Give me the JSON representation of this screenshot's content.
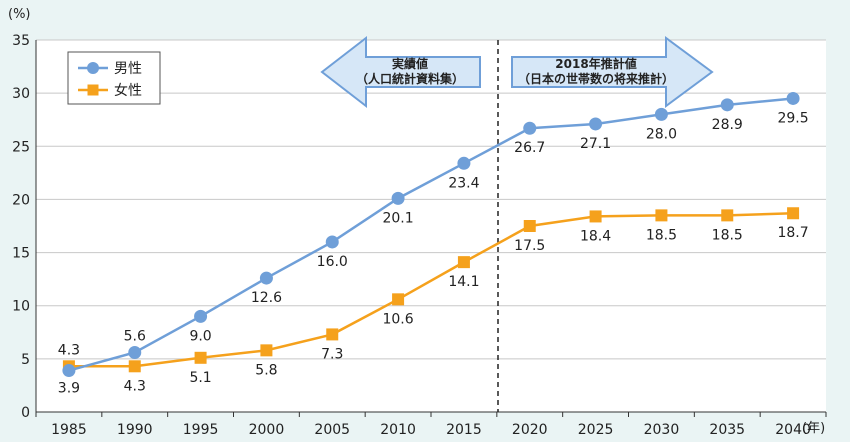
{
  "chart_data": {
    "type": "line",
    "ylabel": "(%)",
    "xunit": "(年)",
    "ylim": [
      0,
      35
    ],
    "yticks": [
      0,
      5,
      10,
      15,
      20,
      25,
      30,
      35
    ],
    "x": [
      "1985",
      "1990",
      "1995",
      "2000",
      "2005",
      "2010",
      "2015",
      "2020",
      "2025",
      "2030",
      "2035",
      "2040"
    ],
    "legend_position": "top-left",
    "grid": "horizontal",
    "series": [
      {
        "name": "男性",
        "color": "#6f9fd8",
        "marker": "circle",
        "values": [
          3.9,
          5.6,
          9.0,
          12.6,
          16.0,
          20.1,
          23.4,
          26.7,
          27.1,
          28.0,
          28.9,
          29.5
        ],
        "labels": [
          "3.9",
          "5.6",
          "9.0",
          "12.6",
          "16.0",
          "20.1",
          "23.4",
          "26.7",
          "27.1",
          "28.0",
          "28.9",
          "29.5"
        ]
      },
      {
        "name": "女性",
        "color": "#f5a11c",
        "marker": "square",
        "values": [
          4.3,
          4.3,
          5.1,
          5.8,
          7.3,
          10.6,
          14.1,
          17.5,
          18.4,
          18.5,
          18.5,
          18.7
        ],
        "labels": [
          "4.3",
          "4.3",
          "5.1",
          "5.8",
          "7.3",
          "10.6",
          "14.1",
          "17.5",
          "18.4",
          "18.5",
          "18.5",
          "18.7"
        ]
      }
    ],
    "annotations": {
      "actual": {
        "line1": "実績値",
        "line2": "（人口統計資料集）"
      },
      "projection": {
        "line1": "2018年推計値",
        "line2": "（日本の世帯数の将来推計）"
      }
    }
  }
}
